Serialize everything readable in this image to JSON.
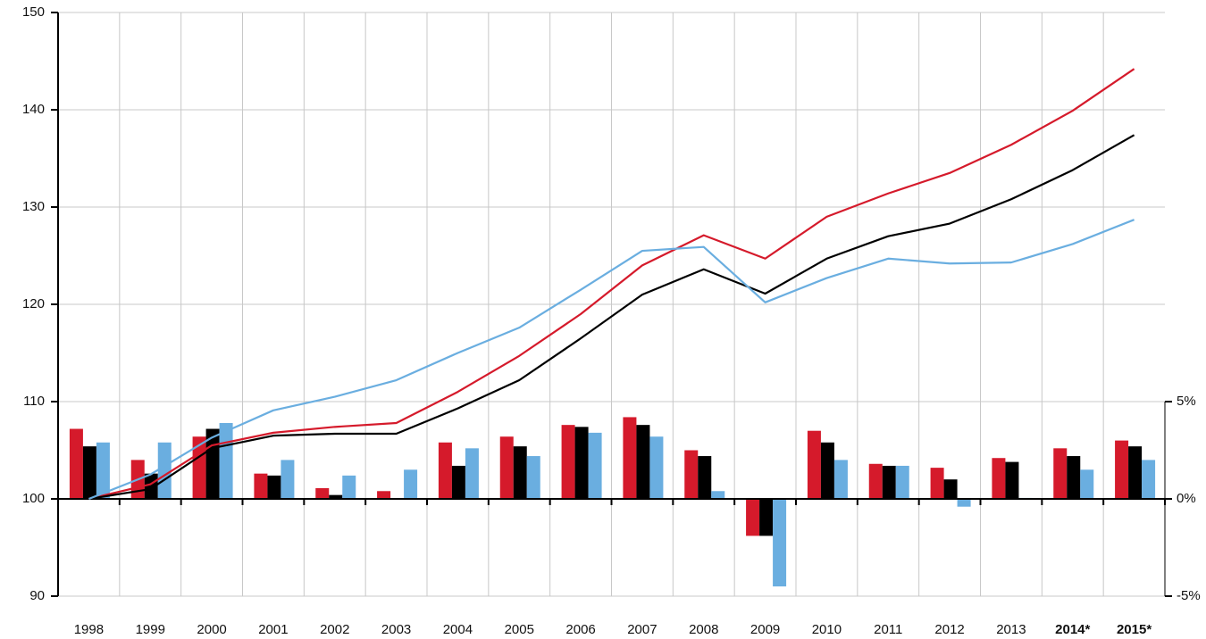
{
  "chart_data": {
    "type": "combo",
    "categories": [
      "1998",
      "1999",
      "2000",
      "2001",
      "2002",
      "2003",
      "2004",
      "2005",
      "2006",
      "2007",
      "2008",
      "2009",
      "2010",
      "2011",
      "2012",
      "2013",
      "2014*",
      "2015*"
    ],
    "ylim": [
      90,
      150
    ],
    "yticks": [
      90,
      100,
      110,
      120,
      130,
      140,
      150
    ],
    "y2lim": [
      -5,
      25
    ],
    "y2ticks": [
      {
        "value": -5,
        "label": "-5%"
      },
      {
        "value": 0,
        "label": "0%"
      },
      {
        "value": 5,
        "label": "5%"
      }
    ],
    "grid": true,
    "series": [
      {
        "type": "bar",
        "axis": "y2",
        "color": "#d51a2b",
        "values": [
          3.6,
          2.0,
          3.2,
          1.3,
          0.55,
          0.4,
          2.9,
          3.2,
          3.8,
          4.2,
          2.5,
          -1.9,
          3.5,
          1.8,
          1.6,
          2.1,
          2.6,
          3.0
        ]
      },
      {
        "type": "bar",
        "axis": "y2",
        "color": "#000000",
        "values": [
          2.7,
          1.3,
          3.6,
          1.2,
          0.2,
          0,
          1.7,
          2.7,
          3.7,
          3.8,
          2.2,
          -1.9,
          2.9,
          1.7,
          1.0,
          1.9,
          2.2,
          2.7
        ]
      },
      {
        "type": "bar",
        "axis": "y2",
        "color": "#6aaee0",
        "values": [
          2.9,
          2.9,
          3.9,
          2.0,
          1.2,
          1.5,
          2.6,
          2.2,
          3.4,
          3.2,
          0.4,
          -4.5,
          2.0,
          1.7,
          -0.4,
          0.05,
          1.5,
          2.0
        ]
      },
      {
        "type": "line",
        "color": "#d51a2b",
        "values": [
          100,
          101.5,
          105.5,
          106.8,
          107.4,
          107.8,
          111,
          114.7,
          119,
          124,
          127.1,
          124.7,
          129,
          131.4,
          133.5,
          136.4,
          139.9,
          144.2
        ]
      },
      {
        "type": "line",
        "color": "#000000",
        "values": [
          100,
          101,
          105.2,
          106.5,
          106.7,
          106.7,
          109.3,
          112.2,
          116.5,
          121,
          123.6,
          121.1,
          124.7,
          127,
          128.3,
          130.8,
          133.8,
          137.4
        ]
      },
      {
        "type": "line",
        "color": "#6aaee0",
        "values": [
          100,
          102.5,
          106.3,
          109.1,
          110.5,
          112.2,
          115,
          117.6,
          121.5,
          125.5,
          125.9,
          120.2,
          122.7,
          124.7,
          124.2,
          124.3,
          126.2,
          128.7
        ]
      }
    ]
  }
}
